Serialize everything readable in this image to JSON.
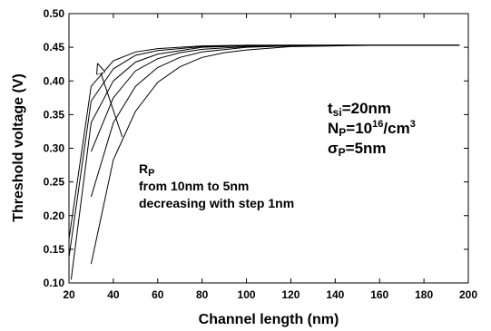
{
  "chart_data": {
    "type": "line",
    "xlabel": "Channel length (nm)",
    "ylabel": "Threshold voltage (V)",
    "xlim": [
      20,
      200
    ],
    "ylim": [
      0.1,
      0.5
    ],
    "xticks": [
      "20",
      "40",
      "60",
      "80",
      "100",
      "120",
      "140",
      "160",
      "180",
      "200"
    ],
    "yticks": [
      "0.10",
      "0.15",
      "0.20",
      "0.25",
      "0.30",
      "0.35",
      "0.40",
      "0.45",
      "0.50"
    ],
    "grid": false,
    "series": [
      {
        "x": [
          20,
          30,
          40,
          50,
          60,
          80,
          100,
          120,
          140,
          160,
          180,
          196
        ],
        "y": [
          0.165,
          0.392,
          0.43,
          0.443,
          0.448,
          0.452,
          0.453,
          0.453,
          0.453,
          0.453,
          0.453,
          0.453
        ]
      },
      {
        "x": [
          20,
          30,
          40,
          50,
          60,
          80,
          100,
          120,
          140,
          160,
          180,
          196
        ],
        "y": [
          0.138,
          0.37,
          0.418,
          0.438,
          0.445,
          0.451,
          0.453,
          0.453,
          0.453,
          0.453,
          0.453,
          0.453
        ]
      },
      {
        "x": [
          21,
          30,
          40,
          50,
          60,
          80,
          100,
          120,
          140,
          160,
          180,
          196
        ],
        "y": [
          0.105,
          0.338,
          0.4,
          0.428,
          0.44,
          0.45,
          0.452,
          0.453,
          0.453,
          0.453,
          0.453,
          0.453
        ]
      },
      {
        "x": [
          30,
          40,
          50,
          60,
          70,
          80,
          100,
          120,
          140,
          160,
          180,
          196
        ],
        "y": [
          0.295,
          0.375,
          0.415,
          0.433,
          0.442,
          0.447,
          0.451,
          0.452,
          0.453,
          0.453,
          0.453,
          0.453
        ]
      },
      {
        "x": [
          30,
          40,
          50,
          60,
          70,
          80,
          100,
          120,
          140,
          160,
          180,
          196
        ],
        "y": [
          0.228,
          0.338,
          0.392,
          0.42,
          0.435,
          0.443,
          0.45,
          0.452,
          0.453,
          0.453,
          0.453,
          0.453
        ]
      },
      {
        "x": [
          30,
          40,
          50,
          60,
          70,
          80,
          90,
          100,
          120,
          140,
          160,
          180,
          196
        ],
        "y": [
          0.128,
          0.283,
          0.355,
          0.398,
          0.421,
          0.435,
          0.442,
          0.446,
          0.451,
          0.452,
          0.453,
          0.453,
          0.453
        ]
      }
    ],
    "annotations": {
      "tsi": {
        "main": "t",
        "sub": "si",
        "rest": "=20nm"
      },
      "np": {
        "main": "N",
        "sub": "P",
        "mid": "=10",
        "sup": "16",
        "mid2": "/cm",
        "sup2": "3"
      },
      "sigma": {
        "main": "σ",
        "sub": "P",
        "rest": "=5nm"
      },
      "rp": {
        "main": "R",
        "sub": "P"
      },
      "rp_line2": "from 10nm to 5nm",
      "rp_line3": "decreasing with step 1nm"
    },
    "arrow": {
      "from": [
        44,
        0.317
      ],
      "to": [
        33,
        0.425
      ]
    }
  }
}
